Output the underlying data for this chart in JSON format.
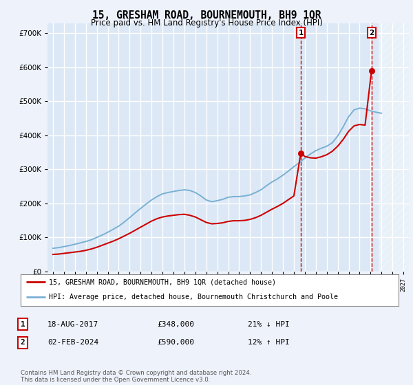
{
  "title": "15, GRESHAM ROAD, BOURNEMOUTH, BH9 1QR",
  "subtitle": "Price paid vs. HM Land Registry's House Price Index (HPI)",
  "ylim": [
    0,
    730000
  ],
  "yticks": [
    0,
    100000,
    200000,
    300000,
    400000,
    500000,
    600000,
    700000
  ],
  "xlim_start": 1994.5,
  "xlim_end": 2027.5,
  "background_color": "#eef2fb",
  "plot_bg_color": "#dce8f5",
  "grid_color": "#ffffff",
  "legend_entry1": "15, GRESHAM ROAD, BOURNEMOUTH, BH9 1QR (detached house)",
  "legend_entry2": "HPI: Average price, detached house, Bournemouth Christchurch and Poole",
  "transaction1_date": "18-AUG-2017",
  "transaction1_price": "£348,000",
  "transaction1_hpi": "21% ↓ HPI",
  "transaction1_year": 2017.63,
  "transaction1_value": 348000,
  "transaction2_date": "02-FEB-2024",
  "transaction2_price": "£590,000",
  "transaction2_hpi": "12% ↑ HPI",
  "transaction2_year": 2024.09,
  "transaction2_value": 590000,
  "red_line_color": "#cc0000",
  "blue_line_color": "#7ab0d4",
  "footer": "Contains HM Land Registry data © Crown copyright and database right 2024.\nThis data is licensed under the Open Government Licence v3.0.",
  "hpi_years": [
    1995,
    1995.5,
    1996,
    1996.5,
    1997,
    1997.5,
    1998,
    1998.5,
    1999,
    1999.5,
    2000,
    2000.5,
    2001,
    2001.5,
    2002,
    2002.5,
    2003,
    2003.5,
    2004,
    2004.5,
    2005,
    2005.5,
    2006,
    2006.5,
    2007,
    2007.5,
    2008,
    2008.5,
    2009,
    2009.5,
    2010,
    2010.5,
    2011,
    2011.5,
    2012,
    2012.5,
    2013,
    2013.5,
    2014,
    2014.5,
    2015,
    2015.5,
    2016,
    2016.5,
    2017,
    2017.5,
    2018,
    2018.5,
    2019,
    2019.5,
    2020,
    2020.5,
    2021,
    2021.5,
    2022,
    2022.5,
    2023,
    2023.5,
    2024,
    2024.5,
    2025
  ],
  "hpi_values": [
    68000,
    70000,
    73000,
    76000,
    80000,
    84000,
    88000,
    93000,
    100000,
    107000,
    115000,
    124000,
    133000,
    145000,
    158000,
    172000,
    185000,
    198000,
    210000,
    220000,
    228000,
    232000,
    235000,
    238000,
    240000,
    238000,
    232000,
    222000,
    210000,
    205000,
    208000,
    212000,
    218000,
    220000,
    220000,
    222000,
    225000,
    232000,
    240000,
    252000,
    263000,
    272000,
    283000,
    295000,
    308000,
    320000,
    333000,
    345000,
    355000,
    362000,
    368000,
    378000,
    398000,
    425000,
    455000,
    475000,
    480000,
    478000,
    472000,
    468000,
    465000
  ],
  "pp_years": [
    1995,
    1995.5,
    1996,
    1996.5,
    1997,
    1997.5,
    1998,
    1998.5,
    1999,
    1999.5,
    2000,
    2000.5,
    2001,
    2001.5,
    2002,
    2002.5,
    2003,
    2003.5,
    2004,
    2004.5,
    2005,
    2005.5,
    2006,
    2006.5,
    2007,
    2007.5,
    2008,
    2008.5,
    2009,
    2009.5,
    2010,
    2010.5,
    2011,
    2011.5,
    2012,
    2012.5,
    2013,
    2013.5,
    2014,
    2014.5,
    2015,
    2015.5,
    2016,
    2016.5,
    2017,
    2017.63,
    2018,
    2018.5,
    2019,
    2019.5,
    2020,
    2020.5,
    2021,
    2021.5,
    2022,
    2022.5,
    2023,
    2023.5,
    2024.09
  ],
  "pp_values": [
    50000,
    51000,
    53000,
    55000,
    57000,
    59000,
    62000,
    66000,
    71000,
    77000,
    83000,
    89000,
    96000,
    104000,
    112000,
    121000,
    130000,
    139000,
    148000,
    155000,
    160000,
    163000,
    165000,
    167000,
    168000,
    165000,
    160000,
    152000,
    144000,
    140000,
    141000,
    143000,
    147000,
    149000,
    149000,
    150000,
    153000,
    158000,
    165000,
    174000,
    183000,
    191000,
    200000,
    211000,
    222000,
    348000,
    338000,
    334000,
    333000,
    337000,
    343000,
    353000,
    368000,
    388000,
    412000,
    428000,
    432000,
    430000,
    590000
  ]
}
